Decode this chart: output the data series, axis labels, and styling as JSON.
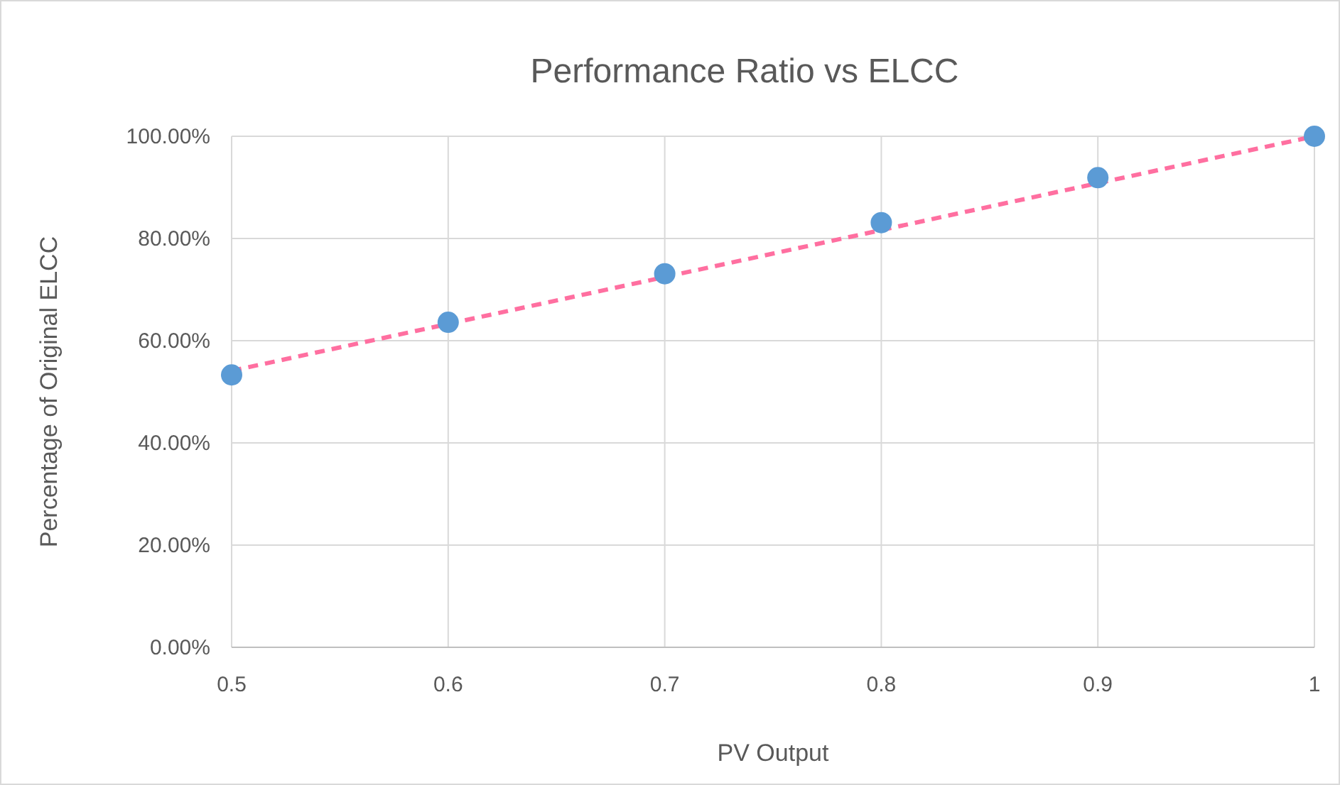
{
  "chart_data": {
    "type": "scatter",
    "title": "Performance  Ratio vs ELCC",
    "xlabel": "PV Output",
    "ylabel": "Percentage of Original ELCC",
    "xlim": [
      0.5,
      1
    ],
    "xticks": [
      0.5,
      0.6,
      0.7,
      0.8,
      0.9,
      1
    ],
    "ylim": [
      0,
      100
    ],
    "yticks": [
      {
        "value": 0,
        "label": "0.00%"
      },
      {
        "value": 20,
        "label": "20.00%"
      },
      {
        "value": 40,
        "label": "40.00%"
      },
      {
        "value": 60,
        "label": "60.00%"
      },
      {
        "value": 80,
        "label": "80.00%"
      },
      {
        "value": 100,
        "label": "100.00%"
      }
    ],
    "grid": true,
    "series": [
      {
        "color": "#5b9bd5",
        "marker": "circle",
        "x": [
          0.5,
          0.6,
          0.7,
          0.8,
          0.9,
          1
        ],
        "values": [
          53.3,
          63.6,
          73.1,
          83.1,
          91.9,
          100
        ]
      },
      {
        "type": "line",
        "color": "#ff6fa0",
        "marker": "none",
        "line_style": "dashed",
        "x": [
          0.5,
          1
        ],
        "values": [
          54.1,
          100
        ]
      }
    ]
  }
}
